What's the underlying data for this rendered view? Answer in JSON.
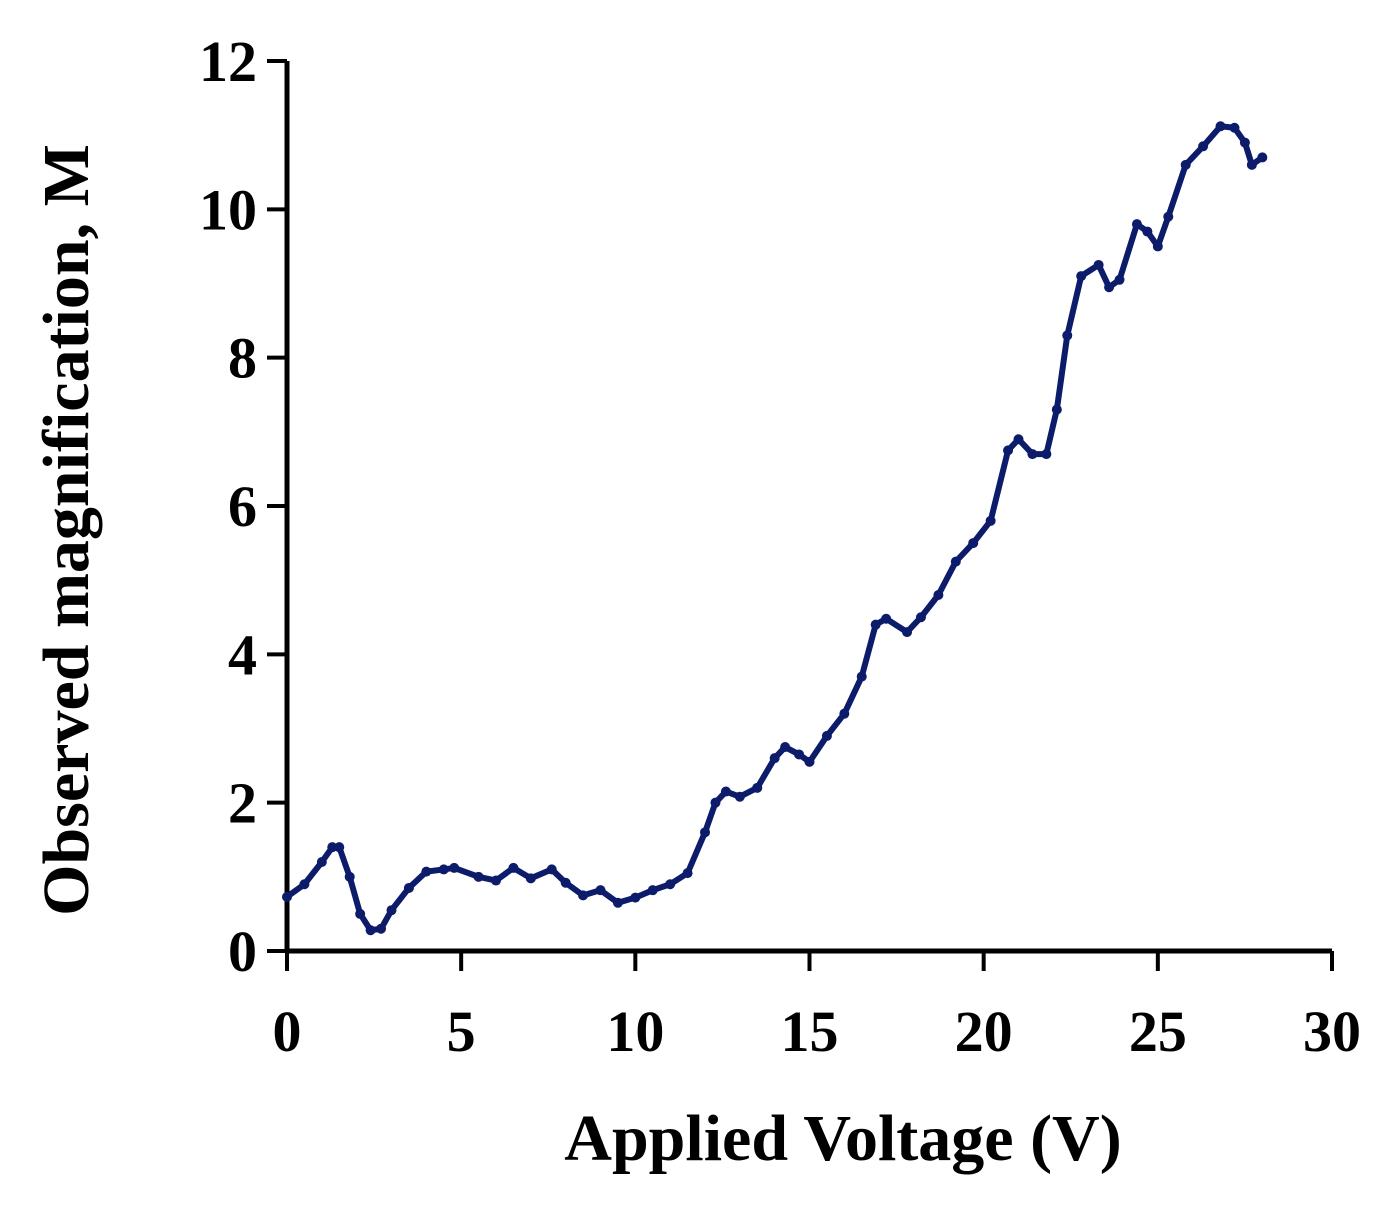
{
  "chart_data": {
    "type": "line",
    "x_label": "Applied Voltage (V)",
    "y_label": "Observed magnification, M",
    "xlim": [
      0,
      30
    ],
    "xticks": [
      0,
      5,
      10,
      15,
      20,
      25,
      30
    ],
    "ylim": [
      0,
      12
    ],
    "yticks": [
      0,
      2,
      4,
      6,
      8,
      10,
      12
    ],
    "series": [
      {
        "color": "#0d1b6b",
        "x": [
          0,
          0.5,
          1.0,
          1.3,
          1.5,
          1.8,
          2.1,
          2.4,
          2.7,
          3.0,
          3.5,
          4.0,
          4.5,
          4.8,
          5.5,
          6.0,
          6.5,
          7.0,
          7.6,
          8.0,
          8.5,
          9.0,
          9.5,
          10.0,
          10.5,
          11.0,
          11.5,
          12.0,
          12.3,
          12.6,
          13.0,
          13.5,
          14.0,
          14.3,
          14.7,
          15.0,
          15.5,
          16.0,
          16.5,
          16.9,
          17.2,
          17.8,
          18.2,
          18.7,
          19.2,
          19.7,
          20.2,
          20.7,
          21.0,
          21.4,
          21.8,
          22.1,
          22.4,
          22.8,
          23.3,
          23.6,
          23.9,
          24.4,
          24.7,
          25.0,
          25.3,
          25.8,
          26.3,
          26.8,
          27.2,
          27.5,
          27.7,
          28.0
        ],
        "values": [
          0.73,
          0.9,
          1.2,
          1.4,
          1.4,
          1.0,
          0.5,
          0.28,
          0.3,
          0.55,
          0.85,
          1.07,
          1.1,
          1.12,
          1.0,
          0.95,
          1.12,
          0.98,
          1.1,
          0.92,
          0.75,
          0.82,
          0.65,
          0.72,
          0.82,
          0.9,
          1.05,
          1.6,
          2.0,
          2.15,
          2.08,
          2.2,
          2.6,
          2.75,
          2.65,
          2.55,
          2.9,
          3.2,
          3.7,
          4.4,
          4.48,
          4.3,
          4.5,
          4.8,
          5.25,
          5.5,
          5.8,
          6.75,
          6.9,
          6.7,
          6.7,
          7.3,
          8.3,
          9.1,
          9.25,
          8.95,
          9.05,
          9.8,
          9.7,
          9.5,
          9.9,
          10.6,
          10.85,
          11.12,
          11.1,
          10.9,
          10.6,
          10.7
        ]
      }
    ]
  }
}
